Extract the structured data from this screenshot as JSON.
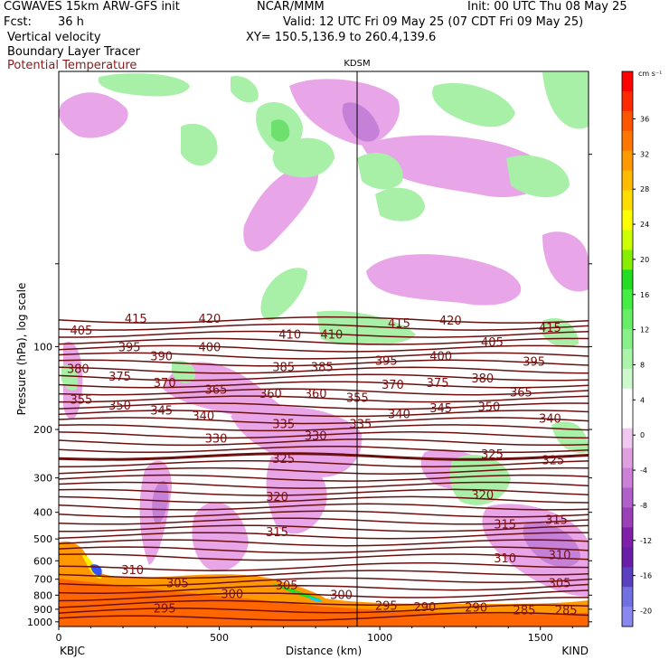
{
  "header": {
    "model": "CGWAVES 15km ARW-GFS init",
    "org": "NCAR/MMM",
    "init": "Init: 00 UTC Thu 08 May 25",
    "fcst_label": "Fcst:",
    "fcst_value": "36 h",
    "valid": "Valid: 12 UTC Fri 09 May 25 (07 CDT Fri 09 May 25)",
    "field1": "Vertical velocity",
    "field2": "Boundary Layer Tracer",
    "field3": "Potential Temperature",
    "xy": "XY= 150.5,136.9 to 260.4,139.6",
    "station_mid": "KDSM",
    "station_left": "KBJC",
    "station_right": "KIND"
  },
  "colors": {
    "theta_line": "#6b0f0f",
    "theta_label": "#7a1010",
    "field3_text": "#8b1a1a",
    "ascent_light": "#a8f0a8",
    "ascent_mid": "#6ee06e",
    "descent_light": "#e8a6e8",
    "descent_mid": "#c580d8",
    "descent_dark": "#9c55c0"
  },
  "chart_data": {
    "type": "cross-section",
    "xlabel": "Distance (km)",
    "ylabel": "Pressure (hPa), log scale",
    "xlim": [
      0,
      1650
    ],
    "ylim": [
      1040,
      10
    ],
    "y_scale": "log",
    "x_ticks": [
      0,
      500,
      1000,
      1500
    ],
    "y_ticks": [
      100,
      200,
      300,
      400,
      500,
      600,
      700,
      800,
      900,
      1000
    ],
    "colorbar": {
      "units": "cm s⁻¹",
      "ticks": [
        "36",
        "32",
        "28",
        "24",
        "20",
        "16",
        "12",
        "8",
        "4",
        "0",
        "-4",
        "-8",
        "-12",
        "-16",
        "-20"
      ],
      "colors": [
        "#ff0000",
        "#ff2a00",
        "#ff5500",
        "#ff7700",
        "#ff9900",
        "#ffbb00",
        "#ffdd00",
        "#ffff00",
        "#ccff00",
        "#88ee00",
        "#22dd22",
        "#44ee44",
        "#66ee66",
        "#88f088",
        "#aaf5aa",
        "#ccfacc",
        "#ffffff",
        "#ffffff",
        "#f0c8f0",
        "#e0a0e0",
        "#cc80d8",
        "#b060c8",
        "#9c40b8",
        "#8020a8",
        "#6a1ea8",
        "#5a40c0",
        "#7070e0",
        "#8888f0"
      ]
    },
    "theta_labels": [
      {
        "v": "420",
        "x": 470,
        "p": 79
      },
      {
        "v": "415",
        "x": 240,
        "p": 79
      },
      {
        "v": "415",
        "x": 1060,
        "p": 82
      },
      {
        "v": "420",
        "x": 1220,
        "p": 80
      },
      {
        "v": "415",
        "x": 1530,
        "p": 85
      },
      {
        "v": "405",
        "x": 70,
        "p": 87
      },
      {
        "v": "410",
        "x": 720,
        "p": 90
      },
      {
        "v": "410",
        "x": 850,
        "p": 90
      },
      {
        "v": "405",
        "x": 1350,
        "p": 96
      },
      {
        "v": "395",
        "x": 220,
        "p": 100
      },
      {
        "v": "400",
        "x": 470,
        "p": 100
      },
      {
        "v": "390",
        "x": 320,
        "p": 108
      },
      {
        "v": "395",
        "x": 1020,
        "p": 112
      },
      {
        "v": "400",
        "x": 1190,
        "p": 108
      },
      {
        "v": "395",
        "x": 1480,
        "p": 113
      },
      {
        "v": "380",
        "x": 60,
        "p": 120
      },
      {
        "v": "385",
        "x": 700,
        "p": 118
      },
      {
        "v": "385",
        "x": 820,
        "p": 118
      },
      {
        "v": "375",
        "x": 190,
        "p": 128
      },
      {
        "v": "370",
        "x": 330,
        "p": 135
      },
      {
        "v": "380",
        "x": 1320,
        "p": 130
      },
      {
        "v": "370",
        "x": 1040,
        "p": 137
      },
      {
        "v": "375",
        "x": 1180,
        "p": 135
      },
      {
        "v": "365",
        "x": 490,
        "p": 143
      },
      {
        "v": "355",
        "x": 70,
        "p": 155
      },
      {
        "v": "360",
        "x": 660,
        "p": 148
      },
      {
        "v": "360",
        "x": 800,
        "p": 148
      },
      {
        "v": "365",
        "x": 1440,
        "p": 146
      },
      {
        "v": "355",
        "x": 930,
        "p": 153
      },
      {
        "v": "350",
        "x": 190,
        "p": 163
      },
      {
        "v": "345",
        "x": 1190,
        "p": 167
      },
      {
        "v": "350",
        "x": 1340,
        "p": 165
      },
      {
        "v": "345",
        "x": 320,
        "p": 170
      },
      {
        "v": "340",
        "x": 450,
        "p": 178
      },
      {
        "v": "340",
        "x": 1060,
        "p": 175
      },
      {
        "v": "340",
        "x": 1530,
        "p": 182
      },
      {
        "v": "335",
        "x": 700,
        "p": 190
      },
      {
        "v": "335",
        "x": 940,
        "p": 190
      },
      {
        "v": "330",
        "x": 490,
        "p": 215
      },
      {
        "v": "330",
        "x": 800,
        "p": 210
      },
      {
        "v": "325",
        "x": 700,
        "p": 255
      },
      {
        "v": "325",
        "x": 1350,
        "p": 245
      },
      {
        "v": "325",
        "x": 1540,
        "p": 258
      },
      {
        "v": "320",
        "x": 680,
        "p": 350
      },
      {
        "v": "320",
        "x": 1320,
        "p": 345
      },
      {
        "v": "315",
        "x": 680,
        "p": 470
      },
      {
        "v": "315",
        "x": 1390,
        "p": 440
      },
      {
        "v": "315",
        "x": 1550,
        "p": 425
      },
      {
        "v": "310",
        "x": 230,
        "p": 645
      },
      {
        "v": "310",
        "x": 1390,
        "p": 585
      },
      {
        "v": "310",
        "x": 1560,
        "p": 570
      },
      {
        "v": "305",
        "x": 370,
        "p": 720
      },
      {
        "v": "305",
        "x": 710,
        "p": 735
      },
      {
        "v": "305",
        "x": 1560,
        "p": 720
      },
      {
        "v": "300",
        "x": 540,
        "p": 790
      },
      {
        "v": "300",
        "x": 880,
        "p": 795
      },
      {
        "v": "295",
        "x": 330,
        "p": 890
      },
      {
        "v": "295",
        "x": 1020,
        "p": 870
      },
      {
        "v": "290",
        "x": 1140,
        "p": 880
      },
      {
        "v": "290",
        "x": 1300,
        "p": 885
      },
      {
        "v": "285",
        "x": 1450,
        "p": 905
      },
      {
        "v": "285",
        "x": 1580,
        "p": 905
      }
    ]
  }
}
